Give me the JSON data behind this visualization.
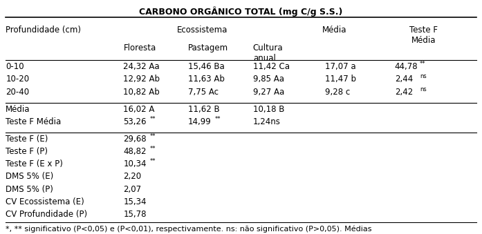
{
  "title": "CARBONO ORGÂNICO TOTAL (mg C/g S.S.)",
  "data_rows": [
    [
      "0-10",
      "24,32 Aa",
      "15,46 Ba",
      "11,42 Ca",
      "17,07 a",
      "44,78",
      "**"
    ],
    [
      "10-20",
      "12,92 Ab",
      "11,63 Ab",
      "9,85 Aa",
      "11,47 b",
      "2,44",
      "ns"
    ],
    [
      "20-40",
      "10,82 Ab",
      "7,75 Ac",
      "9,27 Aa",
      "9,28 c",
      "2,42",
      "ns"
    ]
  ],
  "stat_rows": [
    [
      "Média",
      "16,02 A",
      "11,62 B",
      "10,18 B"
    ],
    [
      "Teste F Média",
      "53,26",
      "**",
      "14,99",
      "**",
      "1,24ns"
    ]
  ],
  "extra_rows": [
    [
      "Teste F (E)",
      "29,68",
      "**"
    ],
    [
      "Teste F (P)",
      "48,82",
      "**"
    ],
    [
      "Teste F (E x P)",
      "10,34",
      "**"
    ],
    [
      "DMS 5% (E)",
      "2,20",
      ""
    ],
    [
      "DMS 5% (P)",
      "2,07",
      ""
    ],
    [
      "CV Ecossistema (E)",
      "15,34",
      ""
    ],
    [
      "CV Profundidade (P)",
      "15,78",
      ""
    ]
  ],
  "footnote": "*, ** significativo (P<0,05) e (P<0,01), respectivamente. ns: não significativo (P>0,05). Médias",
  "bg_color": "#ffffff",
  "text_color": "#000000",
  "font_size": 8.5
}
